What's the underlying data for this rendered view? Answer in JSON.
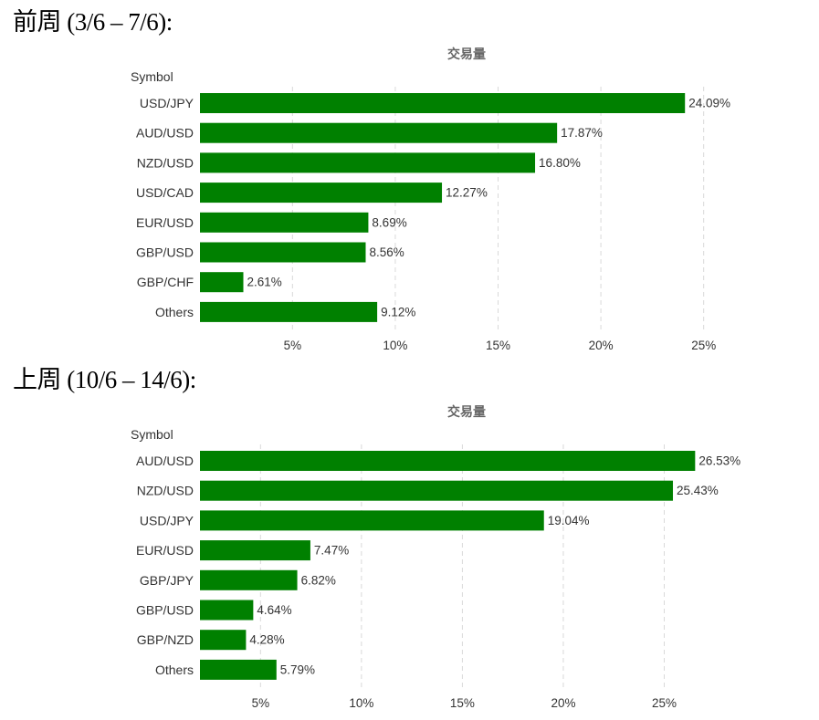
{
  "sections": [
    {
      "heading": "前周 (3/6 – 7/6):"
    },
    {
      "heading": "上周 (10/6 – 14/6):"
    }
  ],
  "chart_data": [
    {
      "type": "bar",
      "orientation": "horizontal",
      "title": "交易量",
      "ylabel": "Symbol",
      "categories": [
        "USD/JPY",
        "AUD/USD",
        "NZD/USD",
        "USD/CAD",
        "EUR/USD",
        "GBP/USD",
        "GBP/CHF",
        "Others"
      ],
      "values": [
        24.09,
        17.87,
        16.8,
        12.27,
        8.69,
        8.56,
        2.61,
        9.12
      ],
      "value_labels": [
        "24.09%",
        "17.87%",
        "16.80%",
        "12.27%",
        "8.69%",
        "8.56%",
        "2.61%",
        "9.12%"
      ],
      "ticks": [
        5,
        10,
        15,
        20,
        25
      ],
      "tick_labels": [
        "5%",
        "10%",
        "15%",
        "20%",
        "25%"
      ],
      "xlim": [
        0.5,
        27.5
      ],
      "grid": true,
      "bar_color": "#008000"
    },
    {
      "type": "bar",
      "orientation": "horizontal",
      "title": "交易量",
      "ylabel": "Symbol",
      "categories": [
        "AUD/USD",
        "NZD/USD",
        "USD/JPY",
        "EUR/USD",
        "GBP/JPY",
        "GBP/USD",
        "GBP/NZD",
        "Others"
      ],
      "values": [
        26.53,
        25.43,
        19.04,
        7.47,
        6.82,
        4.64,
        4.28,
        5.79
      ],
      "value_labels": [
        "26.53%",
        "25.43%",
        "19.04%",
        "7.47%",
        "6.82%",
        "4.64%",
        "4.28%",
        "5.79%"
      ],
      "ticks": [
        5,
        10,
        15,
        20,
        25
      ],
      "tick_labels": [
        "5%",
        "10%",
        "15%",
        "20%",
        "25%"
      ],
      "xlim": [
        2.0,
        29.5
      ],
      "grid": true,
      "bar_color": "#008000"
    }
  ]
}
